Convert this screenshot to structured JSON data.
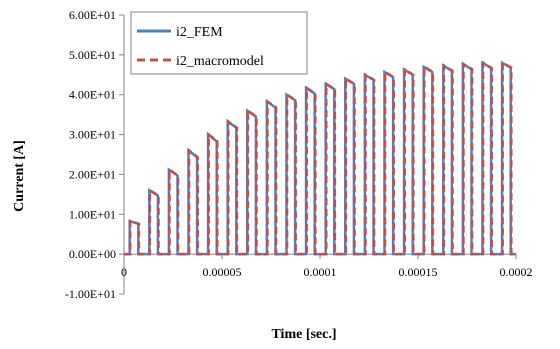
{
  "chart_data": {
    "type": "line",
    "xlabel": "Time [sec.]",
    "ylabel": "Current [A]",
    "xlim": [
      0,
      0.0002
    ],
    "ylim": [
      -10,
      60
    ],
    "x_ticks": [
      {
        "value": 0,
        "label": "0"
      },
      {
        "value": 5e-05,
        "label": "0.00005"
      },
      {
        "value": 0.0001,
        "label": "0.0001"
      },
      {
        "value": 0.00015,
        "label": "0.00015"
      },
      {
        "value": 0.0002,
        "label": "0.0002"
      }
    ],
    "y_ticks": [
      {
        "value": -10,
        "label": "-1.00E+01"
      },
      {
        "value": 0,
        "label": "0.00E+00"
      },
      {
        "value": 10,
        "label": "1.00E+01"
      },
      {
        "value": 20,
        "label": "2.00E+01"
      },
      {
        "value": 30,
        "label": "3.00E+01"
      },
      {
        "value": 40,
        "label": "4.00E+01"
      },
      {
        "value": 50,
        "label": "5.00E+01"
      },
      {
        "value": 60,
        "label": "6.00E+01"
      }
    ],
    "grid": false,
    "legend": "top-left",
    "pulse_period": 1e-05,
    "pulse_width": 4.4e-06,
    "pulses": [
      {
        "start": 2.9e-06,
        "peak": 8.3,
        "end_value": 7.6
      },
      {
        "start": 1.29e-05,
        "peak": 16.0,
        "end_value": 14.7
      },
      {
        "start": 2.29e-05,
        "peak": 21.2,
        "end_value": 19.7
      },
      {
        "start": 3.29e-05,
        "peak": 26.0,
        "end_value": 24.3
      },
      {
        "start": 4.29e-05,
        "peak": 30.0,
        "end_value": 28.3
      },
      {
        "start": 5.29e-05,
        "peak": 33.3,
        "end_value": 31.7
      },
      {
        "start": 6.29e-05,
        "peak": 36.0,
        "end_value": 34.5
      },
      {
        "start": 7.29e-05,
        "peak": 38.3,
        "end_value": 36.8
      },
      {
        "start": 8.29e-05,
        "peak": 40.0,
        "end_value": 38.6
      },
      {
        "start": 9.29e-05,
        "peak": 41.7,
        "end_value": 40.3
      },
      {
        "start": 0.0001029,
        "peak": 42.7,
        "end_value": 41.4
      },
      {
        "start": 0.0001129,
        "peak": 44.0,
        "end_value": 42.7
      },
      {
        "start": 0.0001229,
        "peak": 45.0,
        "end_value": 43.7
      },
      {
        "start": 0.0001329,
        "peak": 45.7,
        "end_value": 44.4
      },
      {
        "start": 0.0001429,
        "peak": 46.3,
        "end_value": 45.0
      },
      {
        "start": 0.0001529,
        "peak": 47.0,
        "end_value": 45.7
      },
      {
        "start": 0.0001629,
        "peak": 47.3,
        "end_value": 46.0
      },
      {
        "start": 0.0001729,
        "peak": 47.7,
        "end_value": 46.4
      },
      {
        "start": 0.0001829,
        "peak": 48.0,
        "end_value": 46.7
      },
      {
        "start": 0.0001929,
        "peak": 48.0,
        "end_value": 46.8
      }
    ],
    "series": [
      {
        "name": "i2_FEM",
        "color": "#4F81BD",
        "style": "solid"
      },
      {
        "name": "i2_macromodel",
        "color": "#C0504D",
        "style": "dashed"
      }
    ]
  }
}
